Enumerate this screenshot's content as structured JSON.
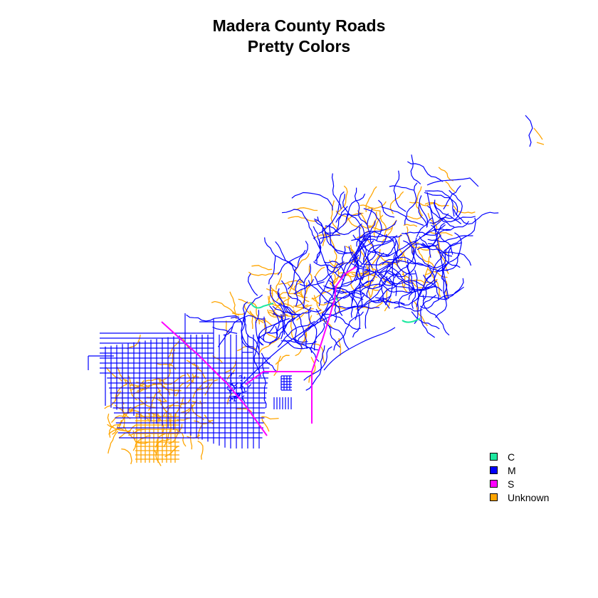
{
  "title": {
    "line1": "Madera County Roads",
    "line2": "Pretty Colors"
  },
  "legend": [
    {
      "label": "C",
      "color": "#1ee8a0"
    },
    {
      "label": "M",
      "color": "#0000ff"
    },
    {
      "label": "S",
      "color": "#ff00ff"
    },
    {
      "label": "Unknown",
      "color": "#ffa500"
    }
  ],
  "road_colors": {
    "C": "#1ee8a0",
    "M": "#0000ff",
    "S": "#ff00ff",
    "Unknown": "#ffa500"
  }
}
